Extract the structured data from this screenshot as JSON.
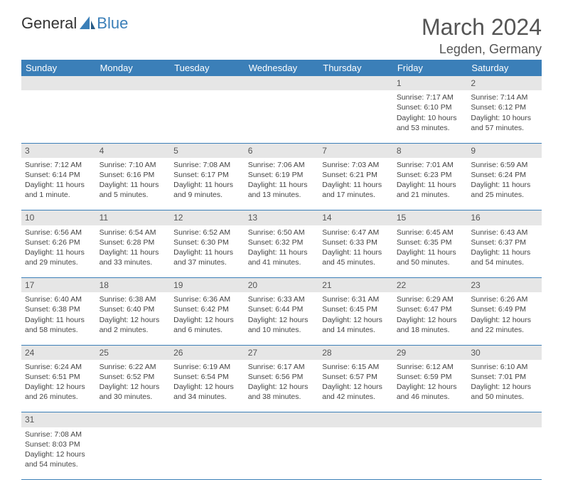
{
  "logo": {
    "text1": "General",
    "text2": "Blue"
  },
  "title": "March 2024",
  "location": "Legden, Germany",
  "colors": {
    "header_bg": "#3b7fb8",
    "header_fg": "#ffffff",
    "daynum_bg": "#e6e6e6",
    "text": "#444444"
  },
  "dayHeaders": [
    "Sunday",
    "Monday",
    "Tuesday",
    "Wednesday",
    "Thursday",
    "Friday",
    "Saturday"
  ],
  "weeks": [
    [
      null,
      null,
      null,
      null,
      null,
      {
        "n": "1",
        "sr": "Sunrise: 7:17 AM",
        "ss": "Sunset: 6:10 PM",
        "dl1": "Daylight: 10 hours",
        "dl2": "and 53 minutes."
      },
      {
        "n": "2",
        "sr": "Sunrise: 7:14 AM",
        "ss": "Sunset: 6:12 PM",
        "dl1": "Daylight: 10 hours",
        "dl2": "and 57 minutes."
      }
    ],
    [
      {
        "n": "3",
        "sr": "Sunrise: 7:12 AM",
        "ss": "Sunset: 6:14 PM",
        "dl1": "Daylight: 11 hours",
        "dl2": "and 1 minute."
      },
      {
        "n": "4",
        "sr": "Sunrise: 7:10 AM",
        "ss": "Sunset: 6:16 PM",
        "dl1": "Daylight: 11 hours",
        "dl2": "and 5 minutes."
      },
      {
        "n": "5",
        "sr": "Sunrise: 7:08 AM",
        "ss": "Sunset: 6:17 PM",
        "dl1": "Daylight: 11 hours",
        "dl2": "and 9 minutes."
      },
      {
        "n": "6",
        "sr": "Sunrise: 7:06 AM",
        "ss": "Sunset: 6:19 PM",
        "dl1": "Daylight: 11 hours",
        "dl2": "and 13 minutes."
      },
      {
        "n": "7",
        "sr": "Sunrise: 7:03 AM",
        "ss": "Sunset: 6:21 PM",
        "dl1": "Daylight: 11 hours",
        "dl2": "and 17 minutes."
      },
      {
        "n": "8",
        "sr": "Sunrise: 7:01 AM",
        "ss": "Sunset: 6:23 PM",
        "dl1": "Daylight: 11 hours",
        "dl2": "and 21 minutes."
      },
      {
        "n": "9",
        "sr": "Sunrise: 6:59 AM",
        "ss": "Sunset: 6:24 PM",
        "dl1": "Daylight: 11 hours",
        "dl2": "and 25 minutes."
      }
    ],
    [
      {
        "n": "10",
        "sr": "Sunrise: 6:56 AM",
        "ss": "Sunset: 6:26 PM",
        "dl1": "Daylight: 11 hours",
        "dl2": "and 29 minutes."
      },
      {
        "n": "11",
        "sr": "Sunrise: 6:54 AM",
        "ss": "Sunset: 6:28 PM",
        "dl1": "Daylight: 11 hours",
        "dl2": "and 33 minutes."
      },
      {
        "n": "12",
        "sr": "Sunrise: 6:52 AM",
        "ss": "Sunset: 6:30 PM",
        "dl1": "Daylight: 11 hours",
        "dl2": "and 37 minutes."
      },
      {
        "n": "13",
        "sr": "Sunrise: 6:50 AM",
        "ss": "Sunset: 6:32 PM",
        "dl1": "Daylight: 11 hours",
        "dl2": "and 41 minutes."
      },
      {
        "n": "14",
        "sr": "Sunrise: 6:47 AM",
        "ss": "Sunset: 6:33 PM",
        "dl1": "Daylight: 11 hours",
        "dl2": "and 45 minutes."
      },
      {
        "n": "15",
        "sr": "Sunrise: 6:45 AM",
        "ss": "Sunset: 6:35 PM",
        "dl1": "Daylight: 11 hours",
        "dl2": "and 50 minutes."
      },
      {
        "n": "16",
        "sr": "Sunrise: 6:43 AM",
        "ss": "Sunset: 6:37 PM",
        "dl1": "Daylight: 11 hours",
        "dl2": "and 54 minutes."
      }
    ],
    [
      {
        "n": "17",
        "sr": "Sunrise: 6:40 AM",
        "ss": "Sunset: 6:38 PM",
        "dl1": "Daylight: 11 hours",
        "dl2": "and 58 minutes."
      },
      {
        "n": "18",
        "sr": "Sunrise: 6:38 AM",
        "ss": "Sunset: 6:40 PM",
        "dl1": "Daylight: 12 hours",
        "dl2": "and 2 minutes."
      },
      {
        "n": "19",
        "sr": "Sunrise: 6:36 AM",
        "ss": "Sunset: 6:42 PM",
        "dl1": "Daylight: 12 hours",
        "dl2": "and 6 minutes."
      },
      {
        "n": "20",
        "sr": "Sunrise: 6:33 AM",
        "ss": "Sunset: 6:44 PM",
        "dl1": "Daylight: 12 hours",
        "dl2": "and 10 minutes."
      },
      {
        "n": "21",
        "sr": "Sunrise: 6:31 AM",
        "ss": "Sunset: 6:45 PM",
        "dl1": "Daylight: 12 hours",
        "dl2": "and 14 minutes."
      },
      {
        "n": "22",
        "sr": "Sunrise: 6:29 AM",
        "ss": "Sunset: 6:47 PM",
        "dl1": "Daylight: 12 hours",
        "dl2": "and 18 minutes."
      },
      {
        "n": "23",
        "sr": "Sunrise: 6:26 AM",
        "ss": "Sunset: 6:49 PM",
        "dl1": "Daylight: 12 hours",
        "dl2": "and 22 minutes."
      }
    ],
    [
      {
        "n": "24",
        "sr": "Sunrise: 6:24 AM",
        "ss": "Sunset: 6:51 PM",
        "dl1": "Daylight: 12 hours",
        "dl2": "and 26 minutes."
      },
      {
        "n": "25",
        "sr": "Sunrise: 6:22 AM",
        "ss": "Sunset: 6:52 PM",
        "dl1": "Daylight: 12 hours",
        "dl2": "and 30 minutes."
      },
      {
        "n": "26",
        "sr": "Sunrise: 6:19 AM",
        "ss": "Sunset: 6:54 PM",
        "dl1": "Daylight: 12 hours",
        "dl2": "and 34 minutes."
      },
      {
        "n": "27",
        "sr": "Sunrise: 6:17 AM",
        "ss": "Sunset: 6:56 PM",
        "dl1": "Daylight: 12 hours",
        "dl2": "and 38 minutes."
      },
      {
        "n": "28",
        "sr": "Sunrise: 6:15 AM",
        "ss": "Sunset: 6:57 PM",
        "dl1": "Daylight: 12 hours",
        "dl2": "and 42 minutes."
      },
      {
        "n": "29",
        "sr": "Sunrise: 6:12 AM",
        "ss": "Sunset: 6:59 PM",
        "dl1": "Daylight: 12 hours",
        "dl2": "and 46 minutes."
      },
      {
        "n": "30",
        "sr": "Sunrise: 6:10 AM",
        "ss": "Sunset: 7:01 PM",
        "dl1": "Daylight: 12 hours",
        "dl2": "and 50 minutes."
      }
    ],
    [
      {
        "n": "31",
        "sr": "Sunrise: 7:08 AM",
        "ss": "Sunset: 8:03 PM",
        "dl1": "Daylight: 12 hours",
        "dl2": "and 54 minutes."
      },
      null,
      null,
      null,
      null,
      null,
      null
    ]
  ]
}
